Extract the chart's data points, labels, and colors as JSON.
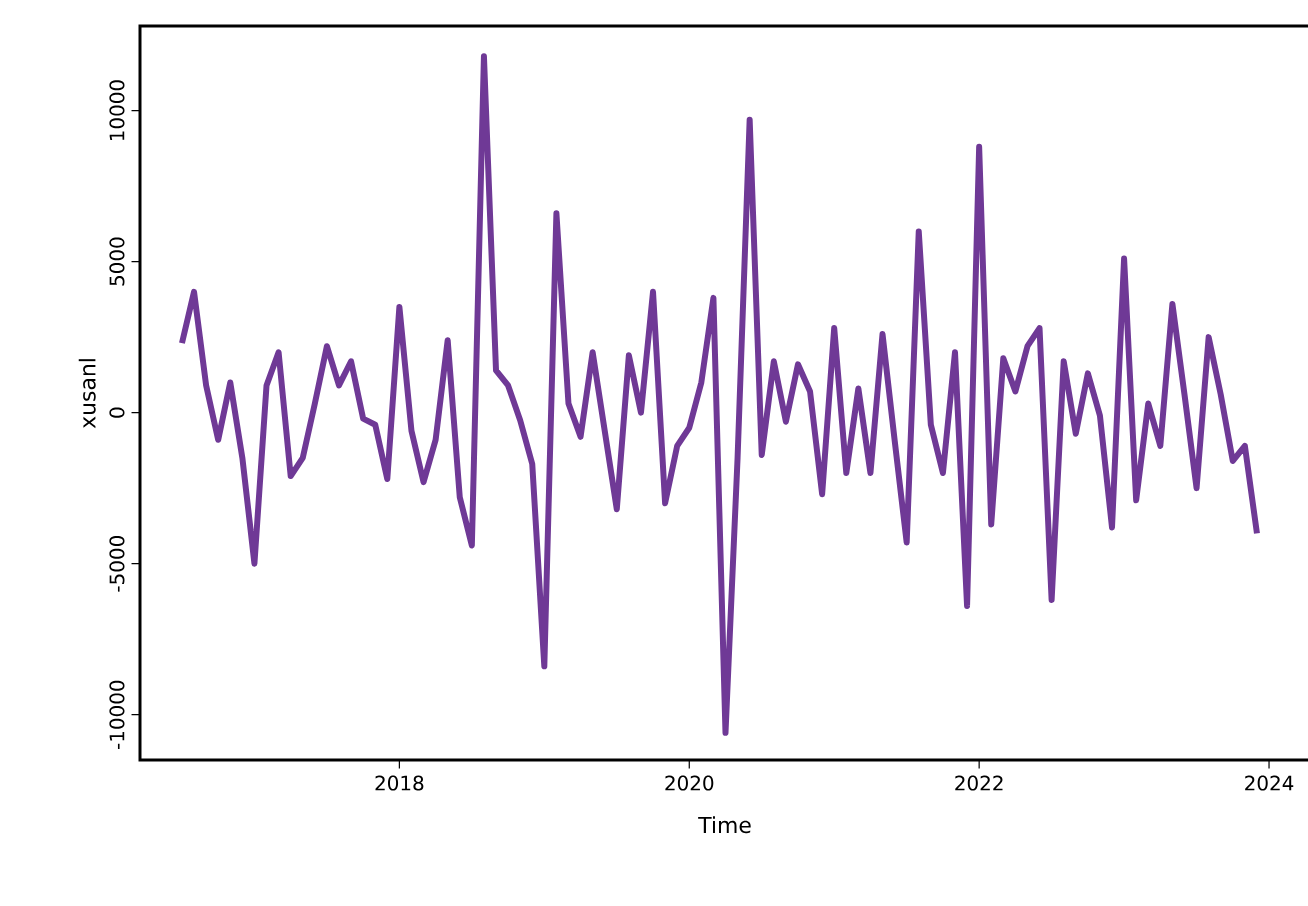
{
  "chart_data": {
    "type": "line",
    "xlabel": "Time",
    "ylabel": "xusanl",
    "x": [
      "2016-07",
      "2016-08",
      "2016-09",
      "2016-10",
      "2016-11",
      "2016-12",
      "2017-01",
      "2017-02",
      "2017-03",
      "2017-04",
      "2017-05",
      "2017-06",
      "2017-07",
      "2017-08",
      "2017-09",
      "2017-10",
      "2017-11",
      "2017-12",
      "2018-01",
      "2018-02",
      "2018-03",
      "2018-04",
      "2018-05",
      "2018-06",
      "2018-07",
      "2018-08",
      "2018-09",
      "2018-10",
      "2018-11",
      "2018-12",
      "2019-01",
      "2019-02",
      "2019-03",
      "2019-04",
      "2019-05",
      "2019-06",
      "2019-07",
      "2019-08",
      "2019-09",
      "2019-10",
      "2019-11",
      "2019-12",
      "2020-01",
      "2020-02",
      "2020-03",
      "2020-04",
      "2020-05",
      "2020-06",
      "2020-07",
      "2020-08",
      "2020-09",
      "2020-10",
      "2020-11",
      "2020-12",
      "2021-01",
      "2021-02",
      "2021-03",
      "2021-04",
      "2021-05",
      "2021-06",
      "2021-07",
      "2021-08",
      "2021-09",
      "2021-10",
      "2021-11",
      "2021-12",
      "2022-01",
      "2022-02",
      "2022-03",
      "2022-04",
      "2022-05",
      "2022-06",
      "2022-07",
      "2022-08",
      "2022-09",
      "2022-10",
      "2022-11",
      "2022-12",
      "2023-01",
      "2023-02",
      "2023-03",
      "2023-04",
      "2023-05",
      "2023-06",
      "2023-07",
      "2023-08",
      "2023-09",
      "2023-10",
      "2023-11",
      "2023-12"
    ],
    "series": [
      {
        "color": "#6f3996",
        "values": [
          2300,
          4000,
          900,
          -900,
          1000,
          -1500,
          -5000,
          900,
          2000,
          -2100,
          -1500,
          300,
          2200,
          900,
          1700,
          -200,
          -400,
          -2200,
          3500,
          -600,
          -2300,
          -900,
          2400,
          -2800,
          -4400,
          11800,
          1400,
          900,
          -250,
          -1700,
          -8400,
          6600,
          300,
          -800,
          2000,
          -600,
          -3200,
          1900,
          0,
          4000,
          -3000,
          -1100,
          -500,
          1000,
          3800,
          -10600,
          -1500,
          9700,
          -1400,
          1700,
          -300,
          1600,
          700,
          -2700,
          2800,
          -2000,
          800,
          -2000,
          2600,
          -900,
          -4300,
          6000,
          -400,
          -2000,
          2000,
          -6400,
          8800,
          -3700,
          1800,
          700,
          2200,
          2800,
          -6200,
          1700,
          -700,
          1300,
          -100,
          -3800,
          5100,
          -2900,
          300,
          -1100,
          3600,
          600,
          -2500,
          2500,
          600,
          -1600,
          -1100,
          -4000
        ]
      }
    ],
    "xlim": [
      "2016-03-17",
      "2024-04-13"
    ],
    "ylim": [
      -11500,
      12800
    ],
    "xticks": [
      {
        "value": "2018",
        "label": "2018"
      },
      {
        "value": "2020",
        "label": "2020"
      },
      {
        "value": "2022",
        "label": "2022"
      },
      {
        "value": "2024",
        "label": "2024"
      }
    ],
    "yticks": [
      -10000,
      -5000,
      0,
      5000,
      10000
    ],
    "line_style": "solid"
  }
}
